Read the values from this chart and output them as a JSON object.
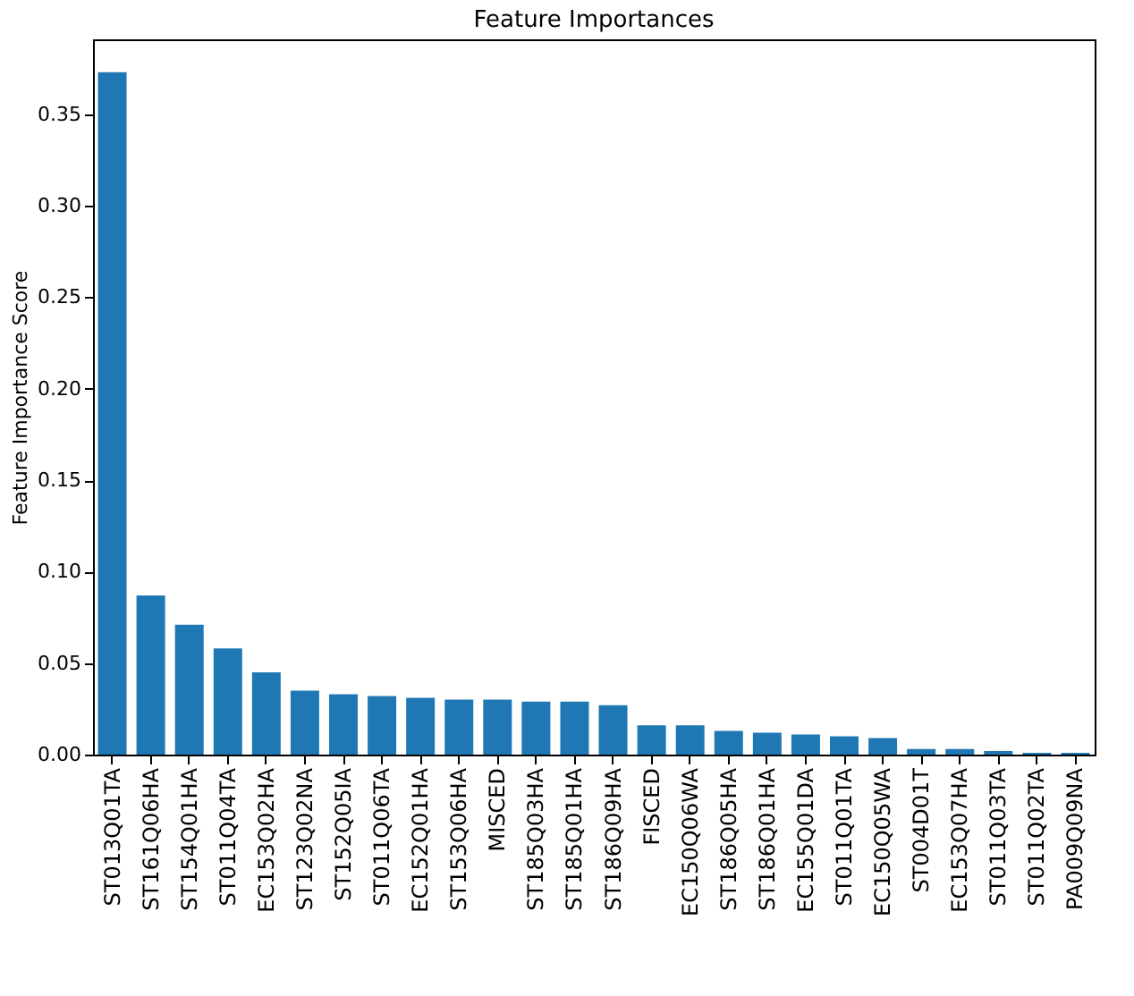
{
  "chart_data": {
    "type": "bar",
    "title": "Feature Importances",
    "ylabel": "Feature Importance Score",
    "categories": [
      "ST013Q01TA",
      "ST161Q06HA",
      "ST154Q01HA",
      "ST011Q04TA",
      "EC153Q02HA",
      "ST123Q02NA",
      "ST152Q05IA",
      "ST011Q06TA",
      "EC152Q01HA",
      "ST153Q06HA",
      "MISCED",
      "ST185Q03HA",
      "ST185Q01HA",
      "ST186Q09HA",
      "FISCED",
      "EC150Q06WA",
      "ST186Q05HA",
      "ST186Q01HA",
      "EC155Q01DA",
      "ST011Q01TA",
      "EC150Q05WA",
      "ST004D01T",
      "EC153Q07HA",
      "ST011Q03TA",
      "ST011Q02TA",
      "PA009Q09NA"
    ],
    "values": [
      0.373,
      0.087,
      0.071,
      0.058,
      0.045,
      0.035,
      0.033,
      0.032,
      0.031,
      0.03,
      0.03,
      0.029,
      0.029,
      0.027,
      0.016,
      0.016,
      0.013,
      0.012,
      0.011,
      0.01,
      0.009,
      0.003,
      0.003,
      0.002,
      0.001,
      0.001
    ],
    "color": "#1f77b4",
    "ylim": [
      0,
      0.391
    ],
    "yticks": [
      {
        "value": 0,
        "label": "0.00"
      },
      {
        "value": 0.05,
        "label": "0.05"
      },
      {
        "value": 0.1,
        "label": "0.10"
      },
      {
        "value": 0.15,
        "label": "0.15"
      },
      {
        "value": 0.2,
        "label": "0.20"
      },
      {
        "value": 0.25,
        "label": "0.25"
      },
      {
        "value": 0.3,
        "label": "0.30"
      },
      {
        "value": 0.35,
        "label": "0.35"
      }
    ],
    "grid": false
  }
}
